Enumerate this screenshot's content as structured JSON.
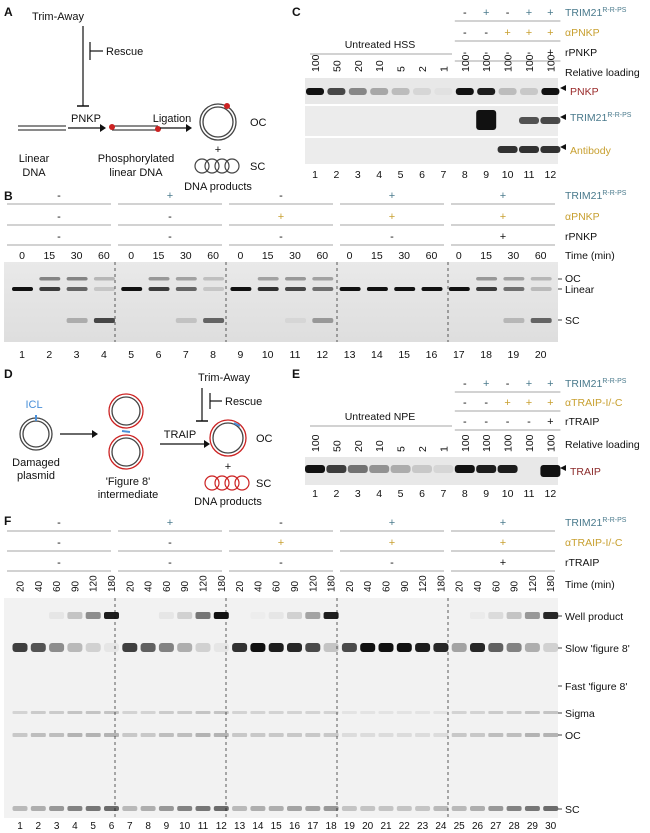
{
  "panels": {
    "A": {
      "letter": "A",
      "trim": "Trim-Away",
      "rescue": "Rescue",
      "pnkp": "PNKP",
      "ligation": "Ligation",
      "oc": "OC",
      "plus": "+",
      "sc": "SC",
      "linear1": "Linear",
      "linear2": "DNA",
      "phos1": "Phosphorylated",
      "phos2": "linear DNA",
      "products": "DNA products"
    },
    "B": {
      "letter": "B",
      "groups": [
        {
          "trim": "-",
          "anti": "-",
          "rec": "-"
        },
        {
          "trim": "+",
          "anti": "-",
          "rec": "-"
        },
        {
          "trim": "-",
          "anti": "+",
          "rec": "-"
        },
        {
          "trim": "+",
          "anti": "+",
          "rec": "-"
        },
        {
          "trim": "+",
          "anti": "+",
          "rec": "+"
        }
      ],
      "times": [
        "0",
        "15",
        "30",
        "60",
        "0",
        "15",
        "30",
        "60",
        "0",
        "15",
        "30",
        "60",
        "0",
        "15",
        "30",
        "60",
        "0",
        "15",
        "30",
        "60"
      ],
      "lanes": [
        "1",
        "2",
        "3",
        "4",
        "5",
        "6",
        "7",
        "8",
        "9",
        "10",
        "11",
        "12",
        "13",
        "14",
        "15",
        "16",
        "17",
        "18",
        "19",
        "20"
      ],
      "labels": {
        "trim": "TRIM21",
        "trim_sup": "R-R-PS",
        "anti": "αPNKP",
        "rec": "rPNKP",
        "time": "Time (min)"
      },
      "bands": {
        "oc": "OC",
        "linear": "Linear",
        "sc": "SC"
      }
    },
    "C": {
      "letter": "C",
      "untreated": "Untreated HSS",
      "loading": [
        "100",
        "50",
        "20",
        "10",
        "5",
        "2",
        "1",
        "100",
        "100",
        "100",
        "100",
        "100"
      ],
      "lanes": [
        "1",
        "2",
        "3",
        "4",
        "5",
        "6",
        "7",
        "8",
        "9",
        "10",
        "11",
        "12"
      ],
      "cond": {
        "trim": [
          "-",
          "+",
          "-",
          "+",
          "+"
        ],
        "anti": [
          "-",
          "-",
          "+",
          "+",
          "+"
        ],
        "rec": [
          "-",
          "-",
          "-",
          "-",
          "+"
        ]
      },
      "labels": {
        "trim": "TRIM21",
        "trim_sup": "R-R-PS",
        "anti": "αPNKP",
        "rec": "rPNKP",
        "loading": "Relative loading"
      },
      "blots": {
        "pnkp": "PNKP",
        "trim": "TRIM21",
        "trim_sup": "R-R-PS",
        "antibody": "Antibody"
      }
    },
    "D": {
      "letter": "D",
      "icl": "ICL",
      "damaged1": "Damaged",
      "damaged2": "plasmid",
      "fig1": "'Figure 8'",
      "fig2": "intermediate",
      "trim": "Trim-Away",
      "rescue": "Rescue",
      "traip": "TRAIP",
      "oc": "OC",
      "plus": "+",
      "sc": "SC",
      "products": "DNA products"
    },
    "E": {
      "letter": "E",
      "untreated": "Untreated NPE",
      "loading": [
        "100",
        "50",
        "20",
        "10",
        "5",
        "2",
        "1",
        "100",
        "100",
        "100",
        "100",
        "100"
      ],
      "lanes": [
        "1",
        "2",
        "3",
        "4",
        "5",
        "6",
        "7",
        "8",
        "9",
        "10",
        "11",
        "12"
      ],
      "cond": {
        "trim": [
          "-",
          "+",
          "-",
          "+",
          "+"
        ],
        "anti": [
          "-",
          "-",
          "+",
          "+",
          "+"
        ],
        "rec": [
          "-",
          "-",
          "-",
          "-",
          "+"
        ]
      },
      "labels": {
        "trim": "TRIM21",
        "trim_sup": "R-R-PS",
        "anti": "αTRAIP-I/-C",
        "rec": "rTRAIP",
        "loading": "Relative loading"
      },
      "blot": "TRAIP"
    },
    "F": {
      "letter": "F",
      "groups": [
        {
          "trim": "-",
          "anti": "-",
          "rec": "-"
        },
        {
          "trim": "+",
          "anti": "-",
          "rec": "-"
        },
        {
          "trim": "-",
          "anti": "+",
          "rec": "-"
        },
        {
          "trim": "+",
          "anti": "+",
          "rec": "-"
        },
        {
          "trim": "+",
          "anti": "+",
          "rec": "+"
        }
      ],
      "times": [
        "20",
        "40",
        "60",
        "90",
        "120",
        "180",
        "20",
        "40",
        "60",
        "90",
        "120",
        "180",
        "20",
        "40",
        "60",
        "90",
        "120",
        "180",
        "20",
        "40",
        "60",
        "90",
        "120",
        "180",
        "20",
        "40",
        "60",
        "90",
        "120",
        "180"
      ],
      "lanes": [
        "1",
        "2",
        "3",
        "4",
        "5",
        "6",
        "7",
        "8",
        "9",
        "10",
        "11",
        "12",
        "13",
        "14",
        "15",
        "16",
        "17",
        "18",
        "19",
        "20",
        "21",
        "22",
        "23",
        "24",
        "25",
        "26",
        "27",
        "28",
        "29",
        "30"
      ],
      "labels": {
        "trim": "TRIM21",
        "trim_sup": "R-R-PS",
        "anti": "αTRAIP-I/-C",
        "rec": "rTRAIP",
        "time": "Time (min)"
      },
      "bands": {
        "well": "Well product",
        "slow": "Slow 'figure 8'",
        "fast": "Fast 'figure 8'",
        "sigma": "Sigma",
        "oc": "OC",
        "sc": "SC"
      }
    }
  },
  "colors": {
    "trim": "#4a7a8c",
    "anti": "#c8a030",
    "pnkp": "#9a2a2a",
    "traip": "#8b2a2a",
    "icl": "#4a90d9",
    "marker": "#cc2222"
  }
}
